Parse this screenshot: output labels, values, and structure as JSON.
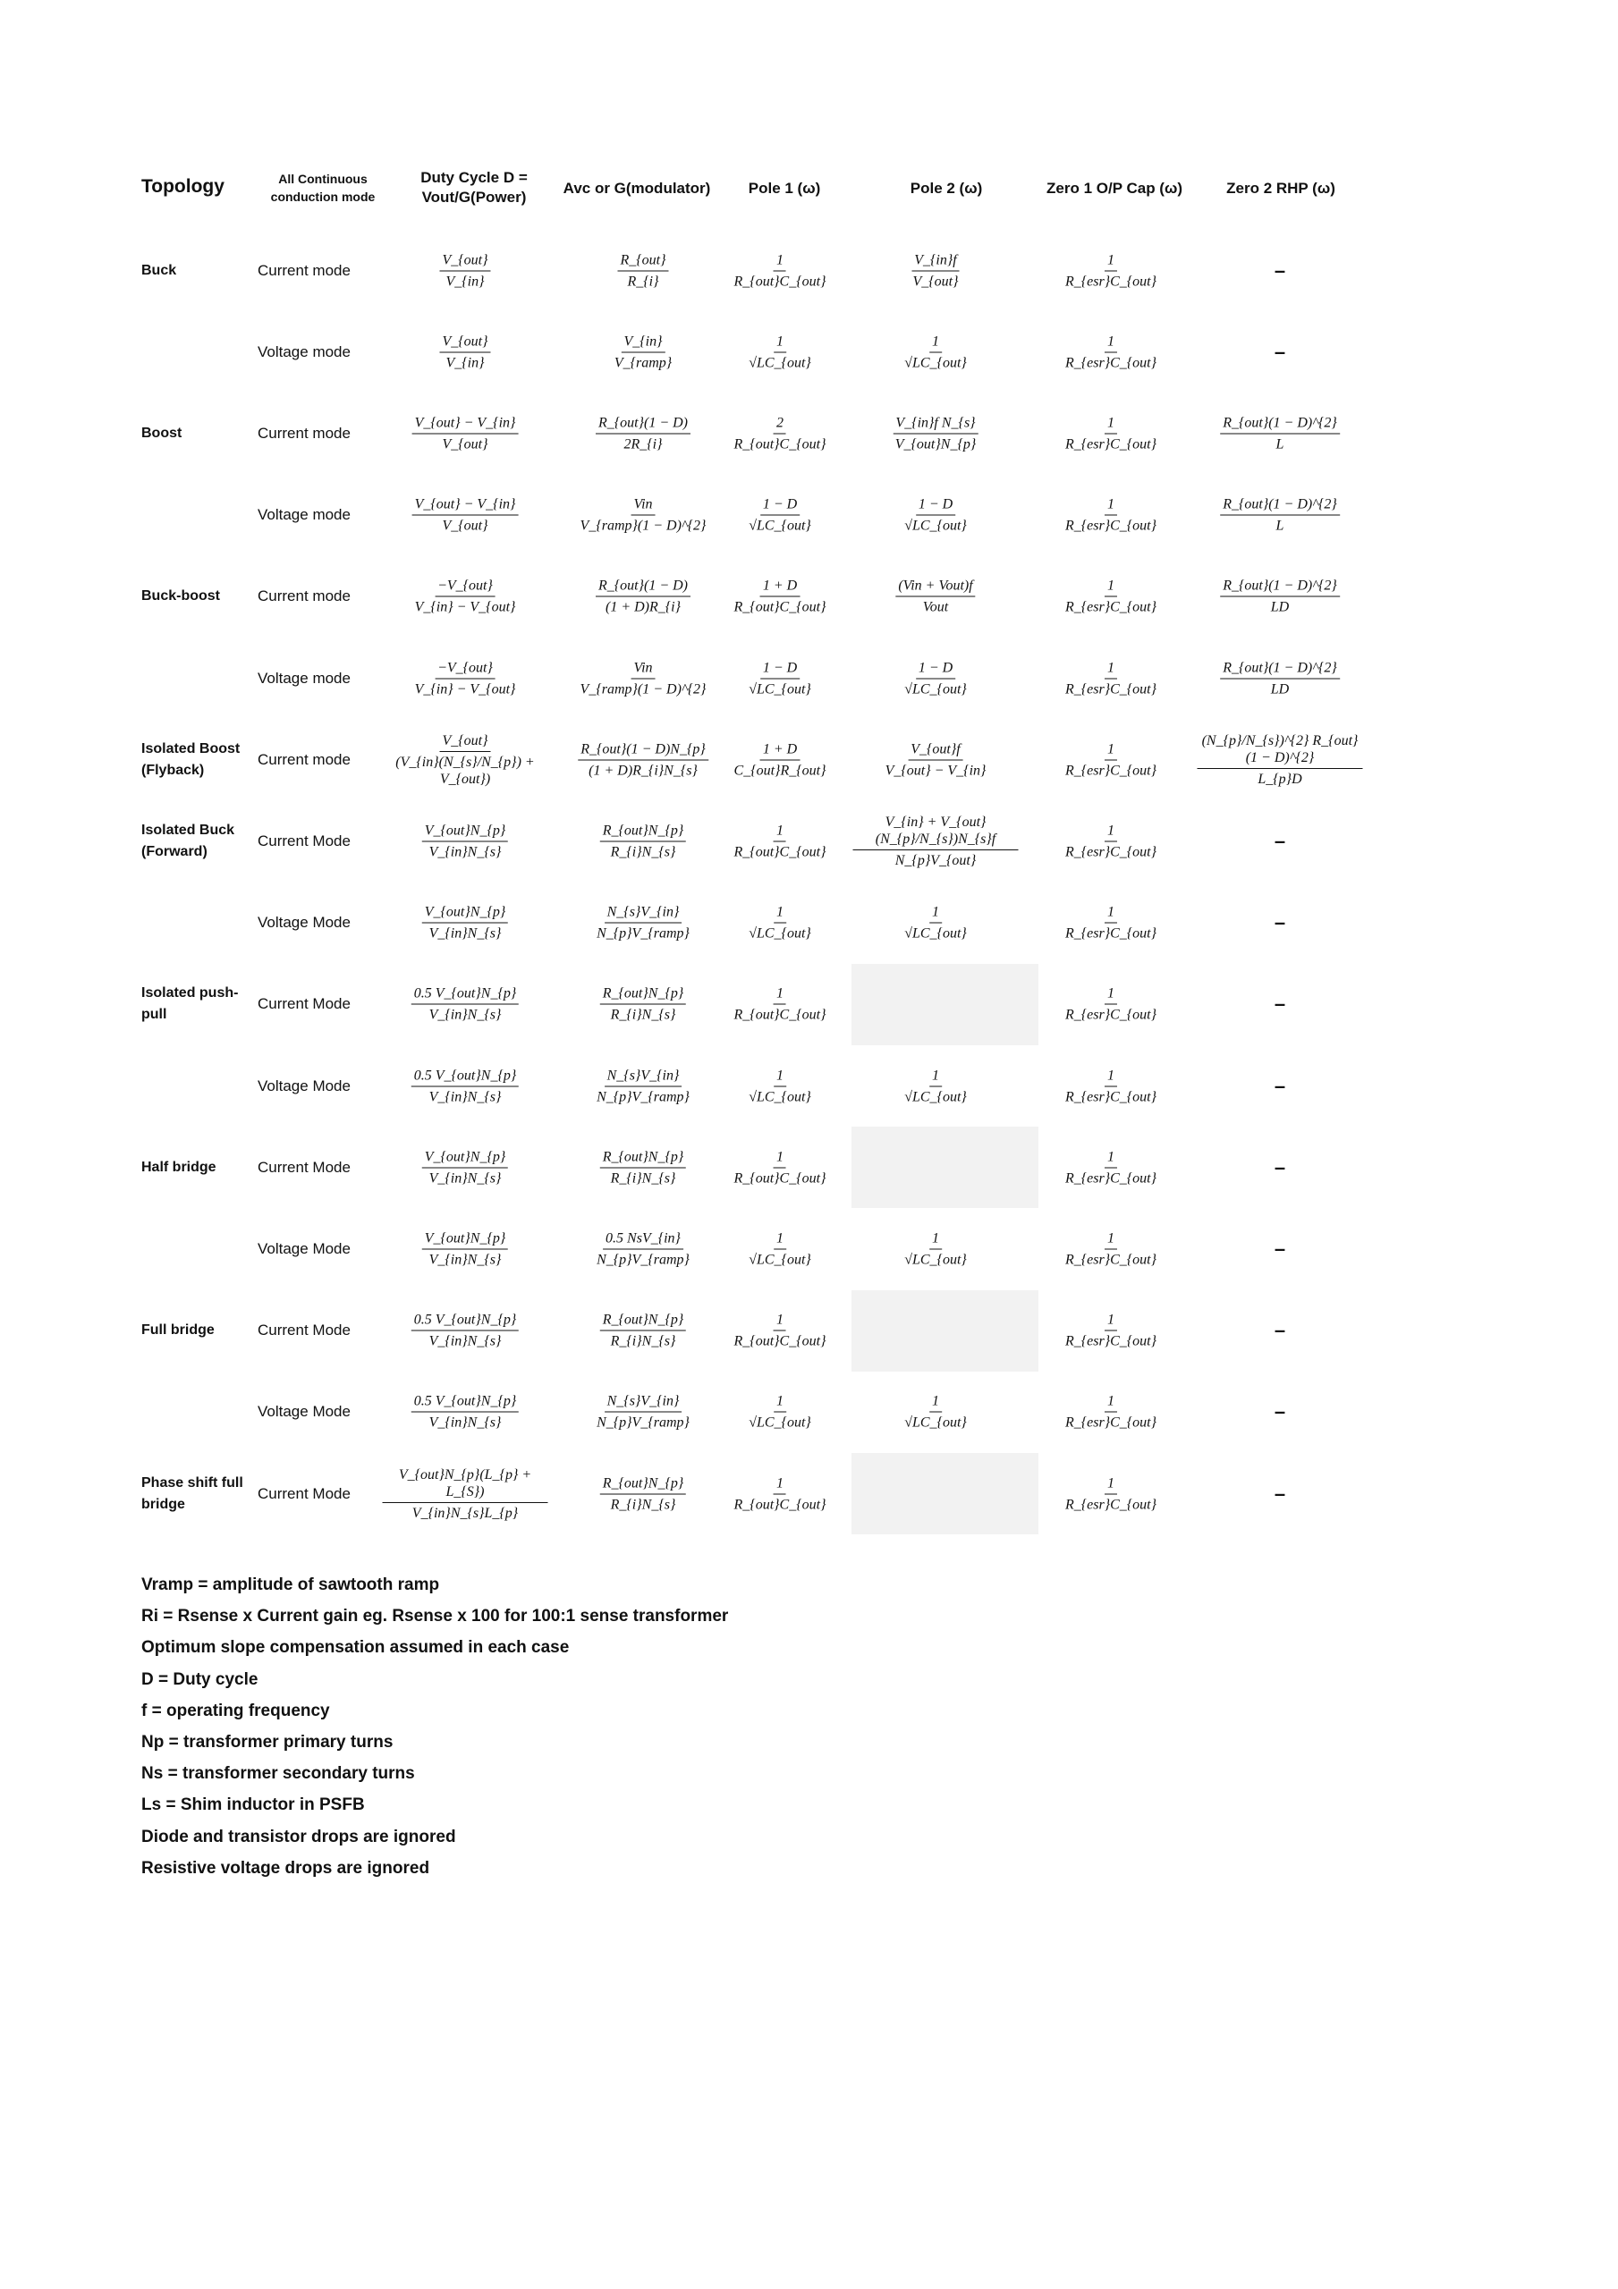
{
  "headers": {
    "topology": "Topology",
    "mode": "All Continuous conduction mode",
    "duty": "Duty Cycle D = Vout/G(Power)",
    "avc": "Avc or G(modulator)",
    "pole1": "Pole 1 (ω)",
    "pole2": "Pole 2 (ω)",
    "zero1": "Zero 1 O/P Cap (ω)",
    "zero2": "Zero 2 RHP (ω)"
  },
  "rows": [
    {
      "topology": "Buck",
      "mode": "Current mode",
      "duty": {
        "num": "V_{out}",
        "den": "V_{in}"
      },
      "avc": {
        "num": "R_{out}",
        "den": "R_{i}"
      },
      "pole1": {
        "num": "1",
        "den": "R_{out}C_{out}"
      },
      "pole2": {
        "num": "V_{in}f",
        "den": "V_{out}"
      },
      "zero1": {
        "num": "1",
        "den": "R_{esr}C_{out}"
      },
      "zero2": {
        "text": "–"
      }
    },
    {
      "topology": "",
      "mode": "Voltage mode",
      "duty": {
        "num": "V_{out}",
        "den": "V_{in}"
      },
      "avc": {
        "num": "V_{in}",
        "den": "V_{ramp}"
      },
      "pole1": {
        "num": "1",
        "den": "√LC_{out}"
      },
      "pole2": {
        "num": "1",
        "den": "√LC_{out}"
      },
      "zero1": {
        "num": "1",
        "den": "R_{esr}C_{out}"
      },
      "zero2": {
        "text": "–"
      }
    },
    {
      "topology": "Boost",
      "mode": "Current mode",
      "duty": {
        "num": "V_{out} − V_{in}",
        "den": "V_{out}"
      },
      "avc": {
        "num": "R_{out}(1 − D)",
        "den": "2R_{i}"
      },
      "pole1": {
        "num": "2",
        "den": "R_{out}C_{out}"
      },
      "pole2": {
        "num": "V_{in}f N_{s}",
        "den": "V_{out}N_{p}"
      },
      "zero1": {
        "num": "1",
        "den": "R_{esr}C_{out}"
      },
      "zero2": {
        "num": "R_{out}(1 − D)^{2}",
        "den": "L"
      }
    },
    {
      "topology": "",
      "mode": "Voltage mode",
      "duty": {
        "num": "V_{out} − V_{in}",
        "den": "V_{out}"
      },
      "avc": {
        "num": "Vin",
        "den": "V_{ramp}(1 − D)^{2}"
      },
      "pole1": {
        "num": "1 − D",
        "den": "√LC_{out}"
      },
      "pole2": {
        "num": "1 − D",
        "den": "√LC_{out}"
      },
      "zero1": {
        "num": "1",
        "den": "R_{esr}C_{out}"
      },
      "zero2": {
        "num": "R_{out}(1 − D)^{2}",
        "den": "L"
      }
    },
    {
      "topology": "Buck-boost",
      "mode": "Current mode",
      "duty": {
        "num": "−V_{out}",
        "den": "V_{in} − V_{out}"
      },
      "avc": {
        "num": "R_{out}(1 − D)",
        "den": "(1 + D)R_{i}"
      },
      "pole1": {
        "num": "1 + D",
        "den": "R_{out}C_{out}"
      },
      "pole2": {
        "num": "(Vin + Vout)f",
        "den": "Vout"
      },
      "zero1": {
        "num": "1",
        "den": "R_{esr}C_{out}"
      },
      "zero2": {
        "num": "R_{out}(1 − D)^{2}",
        "den": "LD"
      }
    },
    {
      "topology": "",
      "mode": "Voltage mode",
      "duty": {
        "num": "−V_{out}",
        "den": "V_{in} − V_{out}"
      },
      "avc": {
        "num": "Vin",
        "den": "V_{ramp}(1 − D)^{2}"
      },
      "pole1": {
        "num": "1 − D",
        "den": "√LC_{out}"
      },
      "pole2": {
        "num": "1 − D",
        "den": "√LC_{out}"
      },
      "zero1": {
        "num": "1",
        "den": "R_{esr}C_{out}"
      },
      "zero2": {
        "num": "R_{out}(1 − D)^{2}",
        "den": "LD"
      }
    },
    {
      "topology": "Isolated Boost (Flyback)",
      "mode": "Current mode",
      "duty": {
        "num": "V_{out}",
        "den": "(V_{in}(N_{s}/N_{p}) + V_{out})"
      },
      "avc": {
        "num": "R_{out}(1 − D)N_{p}",
        "den": "(1 + D)R_{i}N_{s}"
      },
      "pole1": {
        "num": "1 + D",
        "den": "C_{out}R_{out}"
      },
      "pole2": {
        "num": "V_{out}f",
        "den": "V_{out} − V_{in}"
      },
      "zero1": {
        "num": "1",
        "den": "R_{esr}C_{out}"
      },
      "zero2": {
        "num": "(N_{p}/N_{s})^{2} R_{out}(1 − D)^{2}",
        "den": "L_{p}D"
      }
    },
    {
      "topology": "Isolated Buck (Forward)",
      "mode": "Current Mode",
      "duty": {
        "num": "V_{out}N_{p}",
        "den": "V_{in}N_{s}"
      },
      "avc": {
        "num": "R_{out}N_{p}",
        "den": "R_{i}N_{s}"
      },
      "pole1": {
        "num": "1",
        "den": "R_{out}C_{out}"
      },
      "pole2": {
        "num": "V_{in} + V_{out}(N_{p}/N_{s})N_{s}f",
        "den": "N_{p}V_{out}"
      },
      "zero1": {
        "num": "1",
        "den": "R_{esr}C_{out}"
      },
      "zero2": {
        "text": "–"
      }
    },
    {
      "topology": "",
      "mode": "Voltage Mode",
      "duty": {
        "num": "V_{out}N_{p}",
        "den": "V_{in}N_{s}"
      },
      "avc": {
        "num": "N_{s}V_{in}",
        "den": "N_{p}V_{ramp}"
      },
      "pole1": {
        "num": "1",
        "den": "√LC_{out}"
      },
      "pole2": {
        "num": "1",
        "den": "√LC_{out}"
      },
      "zero1": {
        "num": "1",
        "den": "R_{esr}C_{out}"
      },
      "zero2": {
        "text": "–"
      }
    },
    {
      "topology": "Isolated push-pull",
      "mode": "Current Mode",
      "duty": {
        "num": "0.5 V_{out}N_{p}",
        "den": "V_{in}N_{s}"
      },
      "avc": {
        "num": "R_{out}N_{p}",
        "den": "R_{i}N_{s}"
      },
      "pole1": {
        "num": "1",
        "den": "R_{out}C_{out}"
      },
      "pole2": {
        "empty": true
      },
      "zero1": {
        "num": "1",
        "den": "R_{esr}C_{out}"
      },
      "zero2": {
        "text": "–"
      }
    },
    {
      "topology": "",
      "mode": "Voltage Mode",
      "duty": {
        "num": "0.5 V_{out}N_{p}",
        "den": "V_{in}N_{s}"
      },
      "avc": {
        "num": "N_{s}V_{in}",
        "den": "N_{p}V_{ramp}"
      },
      "pole1": {
        "num": "1",
        "den": "√LC_{out}"
      },
      "pole2": {
        "num": "1",
        "den": "√LC_{out}"
      },
      "zero1": {
        "num": "1",
        "den": "R_{esr}C_{out}"
      },
      "zero2": {
        "text": "–"
      }
    },
    {
      "topology": "Half bridge",
      "mode": "Current Mode",
      "duty": {
        "num": "V_{out}N_{p}",
        "den": "V_{in}N_{s}"
      },
      "avc": {
        "num": "R_{out}N_{p}",
        "den": "R_{i}N_{s}"
      },
      "pole1": {
        "num": "1",
        "den": "R_{out}C_{out}"
      },
      "pole2": {
        "empty": true
      },
      "zero1": {
        "num": "1",
        "den": "R_{esr}C_{out}"
      },
      "zero2": {
        "text": "–"
      }
    },
    {
      "topology": "",
      "mode": "Voltage Mode",
      "duty": {
        "num": "V_{out}N_{p}",
        "den": "V_{in}N_{s}"
      },
      "avc": {
        "num": "0.5 NsV_{in}",
        "den": "N_{p}V_{ramp}"
      },
      "pole1": {
        "num": "1",
        "den": "√LC_{out}"
      },
      "pole2": {
        "num": "1",
        "den": "√LC_{out}"
      },
      "zero1": {
        "num": "1",
        "den": "R_{esr}C_{out}"
      },
      "zero2": {
        "text": "–"
      }
    },
    {
      "topology": "Full bridge",
      "mode": "Current Mode",
      "duty": {
        "num": "0.5 V_{out}N_{p}",
        "den": "V_{in}N_{s}"
      },
      "avc": {
        "num": "R_{out}N_{p}",
        "den": "R_{i}N_{s}"
      },
      "pole1": {
        "num": "1",
        "den": "R_{out}C_{out}"
      },
      "pole2": {
        "empty": true
      },
      "zero1": {
        "num": "1",
        "den": "R_{esr}C_{out}"
      },
      "zero2": {
        "text": "–"
      }
    },
    {
      "topology": "",
      "mode": "Voltage Mode",
      "duty": {
        "num": "0.5 V_{out}N_{p}",
        "den": "V_{in}N_{s}"
      },
      "avc": {
        "num": "N_{s}V_{in}",
        "den": "N_{p}V_{ramp}"
      },
      "pole1": {
        "num": "1",
        "den": "√LC_{out}"
      },
      "pole2": {
        "num": "1",
        "den": "√LC_{out}"
      },
      "zero1": {
        "num": "1",
        "den": "R_{esr}C_{out}"
      },
      "zero2": {
        "text": "–"
      }
    },
    {
      "topology": "Phase shift full bridge",
      "mode": "Current Mode",
      "duty": {
        "num": "V_{out}N_{p}(L_{p} + L_{S})",
        "den": "V_{in}N_{s}L_{p}"
      },
      "avc": {
        "num": "R_{out}N_{p}",
        "den": "R_{i}N_{s}"
      },
      "pole1": {
        "num": "1",
        "den": "R_{out}C_{out}"
      },
      "pole2": {
        "empty": true
      },
      "zero1": {
        "num": "1",
        "den": "R_{esr}C_{out}"
      },
      "zero2": {
        "text": "–"
      }
    }
  ],
  "notes": [
    "Vramp = amplitude of sawtooth ramp",
    "Ri = Rsense x Current gain eg. Rsense x 100 for 100:1 sense transformer",
    "Optimum slope compensation assumed in each case",
    "D = Duty cycle",
    "f = operating frequency",
    "Np = transformer primary turns",
    "Ns = transformer secondary turns",
    "Ls = Shim inductor in PSFB",
    "Diode and transistor drops are ignored",
    "Resistive voltage drops are ignored"
  ]
}
